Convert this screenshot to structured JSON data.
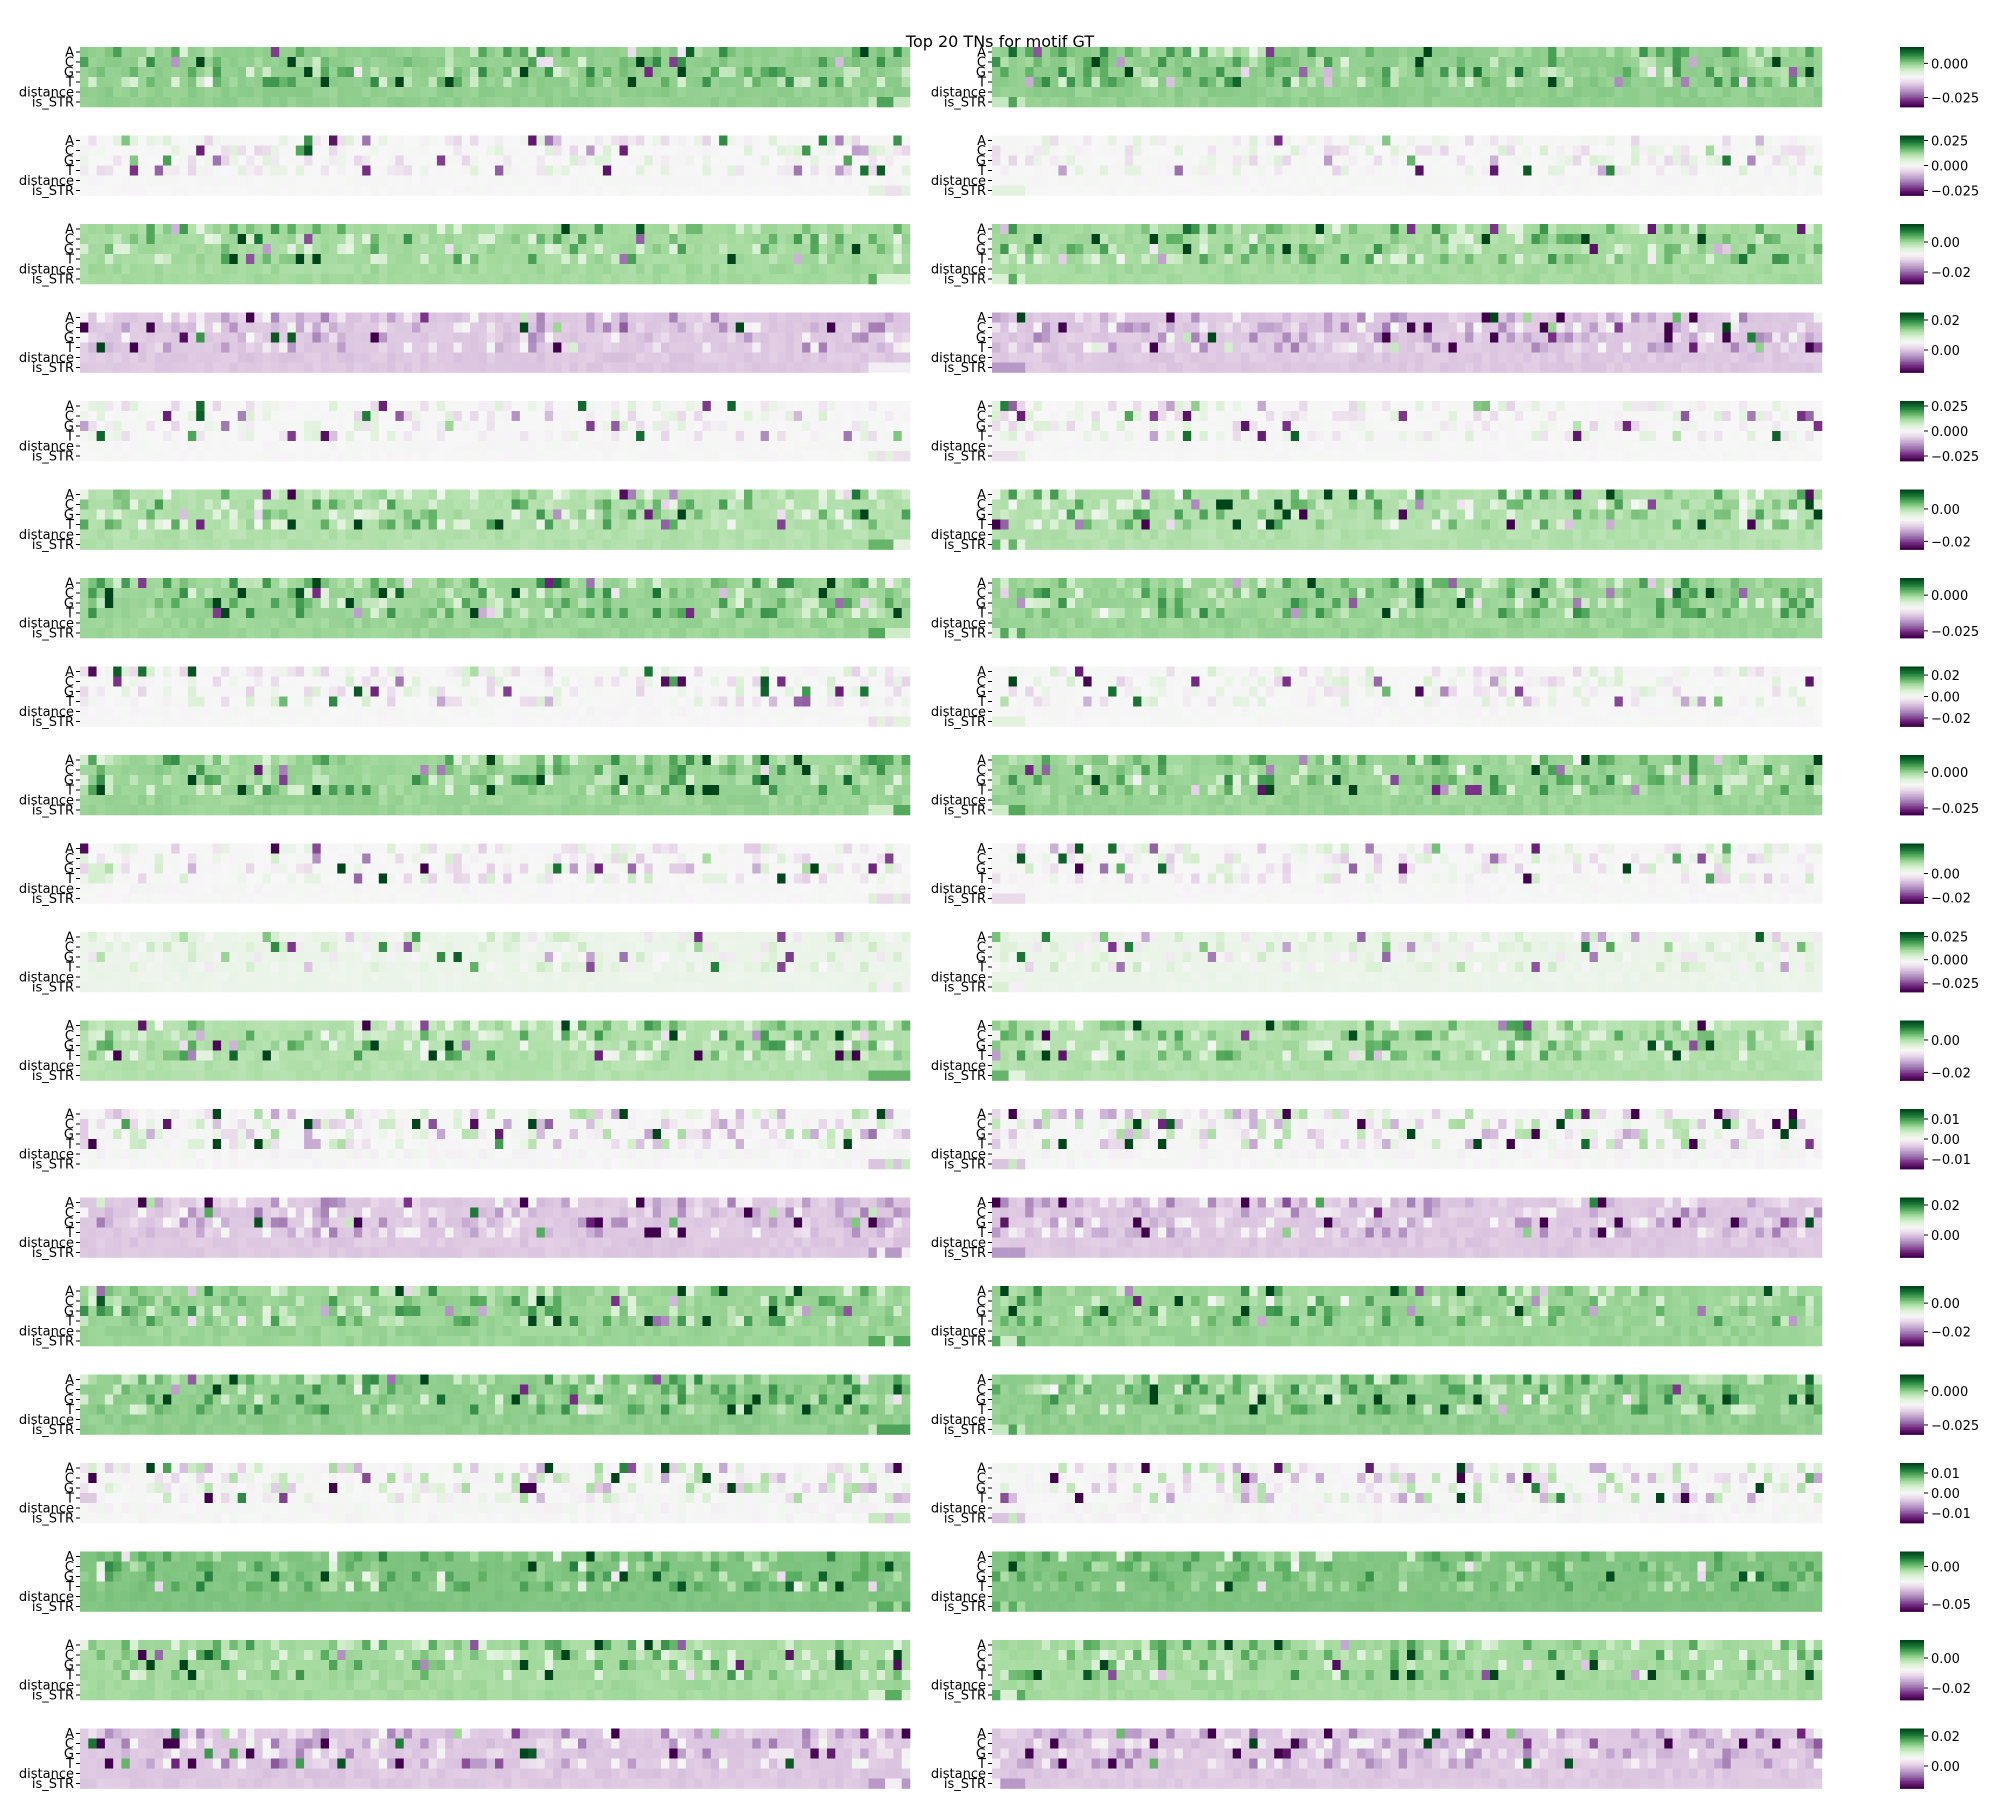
{
  "figure": {
    "title": "Top 20 TNs for motif GT"
  },
  "chart_data": {
    "type": "heatmap",
    "title": "Top 20 TNs for motif GT",
    "row_labels": [
      "A",
      "C",
      "G",
      "T",
      "distance",
      "is_STR"
    ],
    "colormap": "PRGn",
    "panels_per_row": 2,
    "n_rows": 20,
    "n_columns_per_panel": 100,
    "colorbars": [
      {
        "row": 1,
        "ticks": [
          0.0,
          -0.025
        ],
        "tick_labels": [
          "0.000",
          "−0.025"
        ],
        "vmin": -0.032,
        "vmax": 0.012
      },
      {
        "row": 2,
        "ticks": [
          0.025,
          0.0,
          -0.025
        ],
        "tick_labels": [
          "0.025",
          "0.000",
          "−0.025"
        ],
        "vmin": -0.03,
        "vmax": 0.03
      },
      {
        "row": 3,
        "ticks": [
          0.0,
          -0.02
        ],
        "tick_labels": [
          "0.00",
          "−0.02"
        ],
        "vmin": -0.028,
        "vmax": 0.012
      },
      {
        "row": 4,
        "ticks": [
          0.02,
          0.0
        ],
        "tick_labels": [
          "0.02",
          "0.00"
        ],
        "vmin": -0.015,
        "vmax": 0.025
      },
      {
        "row": 5,
        "ticks": [
          0.025,
          0.0,
          -0.025
        ],
        "tick_labels": [
          "0.025",
          "0.000",
          "−0.025"
        ],
        "vmin": -0.03,
        "vmax": 0.03
      },
      {
        "row": 6,
        "ticks": [
          0.0,
          -0.02
        ],
        "tick_labels": [
          "0.00",
          "−0.02"
        ],
        "vmin": -0.025,
        "vmax": 0.012
      },
      {
        "row": 7,
        "ticks": [
          0.0,
          -0.025
        ],
        "tick_labels": [
          "0.000",
          "−0.025"
        ],
        "vmin": -0.03,
        "vmax": 0.012
      },
      {
        "row": 8,
        "ticks": [
          0.02,
          0.0,
          -0.02
        ],
        "tick_labels": [
          "0.02",
          "0.00",
          "−0.02"
        ],
        "vmin": -0.028,
        "vmax": 0.028
      },
      {
        "row": 9,
        "ticks": [
          0.0,
          -0.025
        ],
        "tick_labels": [
          "0.000",
          "−0.025"
        ],
        "vmin": -0.03,
        "vmax": 0.012
      },
      {
        "row": 10,
        "ticks": [
          0.0,
          -0.02
        ],
        "tick_labels": [
          "0.00",
          "−0.02"
        ],
        "vmin": -0.025,
        "vmax": 0.025
      },
      {
        "row": 11,
        "ticks": [
          0.025,
          0.0,
          -0.025
        ],
        "tick_labels": [
          "0.025",
          "0.000",
          "−0.025"
        ],
        "vmin": -0.035,
        "vmax": 0.03
      },
      {
        "row": 12,
        "ticks": [
          0.0,
          -0.02
        ],
        "tick_labels": [
          "0.00",
          "−0.02"
        ],
        "vmin": -0.025,
        "vmax": 0.012
      },
      {
        "row": 13,
        "ticks": [
          0.01,
          0.0,
          -0.01
        ],
        "tick_labels": [
          "0.01",
          "0.00",
          "−0.01"
        ],
        "vmin": -0.015,
        "vmax": 0.015
      },
      {
        "row": 14,
        "ticks": [
          0.02,
          0.0
        ],
        "tick_labels": [
          "0.02",
          "0.00"
        ],
        "vmin": -0.015,
        "vmax": 0.025
      },
      {
        "row": 15,
        "ticks": [
          0.0,
          -0.02
        ],
        "tick_labels": [
          "0.00",
          "−0.02"
        ],
        "vmin": -0.03,
        "vmax": 0.012
      },
      {
        "row": 16,
        "ticks": [
          0.0,
          -0.025
        ],
        "tick_labels": [
          "0.000",
          "−0.025"
        ],
        "vmin": -0.032,
        "vmax": 0.012
      },
      {
        "row": 17,
        "ticks": [
          0.01,
          0.0,
          -0.01
        ],
        "tick_labels": [
          "0.01",
          "0.00",
          "−0.01"
        ],
        "vmin": -0.015,
        "vmax": 0.015
      },
      {
        "row": 18,
        "ticks": [
          0.0,
          -0.05
        ],
        "tick_labels": [
          "0.00",
          "−0.05"
        ],
        "vmin": -0.06,
        "vmax": 0.02
      },
      {
        "row": 19,
        "ticks": [
          0.0,
          -0.02
        ],
        "tick_labels": [
          "0.00",
          "−0.02"
        ],
        "vmin": -0.028,
        "vmax": 0.012
      },
      {
        "row": 20,
        "ticks": [
          0.02,
          0.0
        ],
        "tick_labels": [
          "0.02",
          "0.00"
        ],
        "vmin": -0.015,
        "vmax": 0.025
      }
    ],
    "note_values": "per-cell values are approximate (dense attribution heatmaps); generated deterministically from seed",
    "seed": 20240501
  },
  "colors": {
    "purple_dark": "#40004b",
    "purple_mid": "#9970ab",
    "neutral": "#f7f7f7",
    "green_mid": "#5aae61",
    "green_dark": "#00441b"
  }
}
